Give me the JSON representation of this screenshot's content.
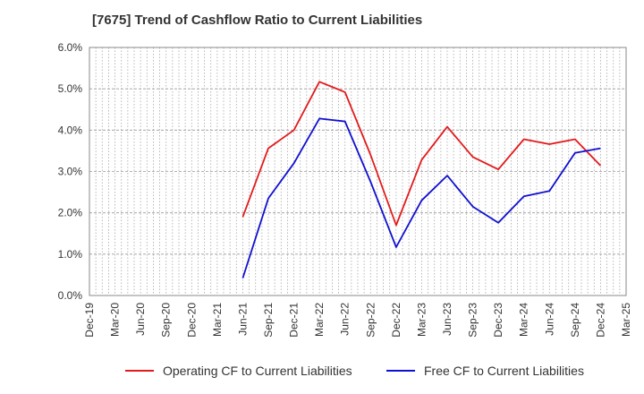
{
  "chart_data": {
    "type": "line",
    "title": "[7675]  Trend of Cashflow Ratio to Current Liabilities",
    "xlabel": "",
    "ylabel": "",
    "x": [
      "Dec-19",
      "Mar-20",
      "Jun-20",
      "Sep-20",
      "Dec-20",
      "Mar-21",
      "Jun-21",
      "Sep-21",
      "Dec-21",
      "Mar-22",
      "Jun-22",
      "Sep-22",
      "Dec-22",
      "Mar-23",
      "Jun-23",
      "Sep-23",
      "Dec-23",
      "Mar-24",
      "Jun-24",
      "Sep-24",
      "Dec-24",
      "Mar-25"
    ],
    "yticks": [
      "0.0%",
      "1.0%",
      "2.0%",
      "3.0%",
      "4.0%",
      "5.0%",
      "6.0%"
    ],
    "ylim": [
      0,
      6
    ],
    "grid": true,
    "legend_position": "bottom",
    "series": [
      {
        "name": "Operating CF to Current Liabilities",
        "color": "#e31a1c",
        "points": [
          [
            "Jun-21",
            1.9
          ],
          [
            "Sep-21",
            3.56
          ],
          [
            "Dec-21",
            4.0
          ],
          [
            "Mar-22",
            5.17
          ],
          [
            "Jun-22",
            4.92
          ],
          [
            "Sep-22",
            3.4
          ],
          [
            "Dec-22",
            1.7
          ],
          [
            "Mar-23",
            3.28
          ],
          [
            "Jun-23",
            4.08
          ],
          [
            "Sep-23",
            3.35
          ],
          [
            "Dec-23",
            3.05
          ],
          [
            "Mar-24",
            3.78
          ],
          [
            "Jun-24",
            3.66
          ],
          [
            "Sep-24",
            3.78
          ],
          [
            "Dec-24",
            3.14
          ]
        ]
      },
      {
        "name": "Free CF to Current Liabilities",
        "color": "#1010d0",
        "points": [
          [
            "Jun-21",
            0.42
          ],
          [
            "Sep-21",
            2.35
          ],
          [
            "Dec-21",
            3.2
          ],
          [
            "Mar-22",
            4.28
          ],
          [
            "Jun-22",
            4.21
          ],
          [
            "Sep-22",
            2.75
          ],
          [
            "Dec-22",
            1.17
          ],
          [
            "Mar-23",
            2.3
          ],
          [
            "Jun-23",
            2.9
          ],
          [
            "Sep-23",
            2.15
          ],
          [
            "Dec-23",
            1.76
          ],
          [
            "Mar-24",
            2.4
          ],
          [
            "Jun-24",
            2.53
          ],
          [
            "Sep-24",
            3.45
          ],
          [
            "Dec-24",
            3.56
          ]
        ]
      }
    ]
  }
}
